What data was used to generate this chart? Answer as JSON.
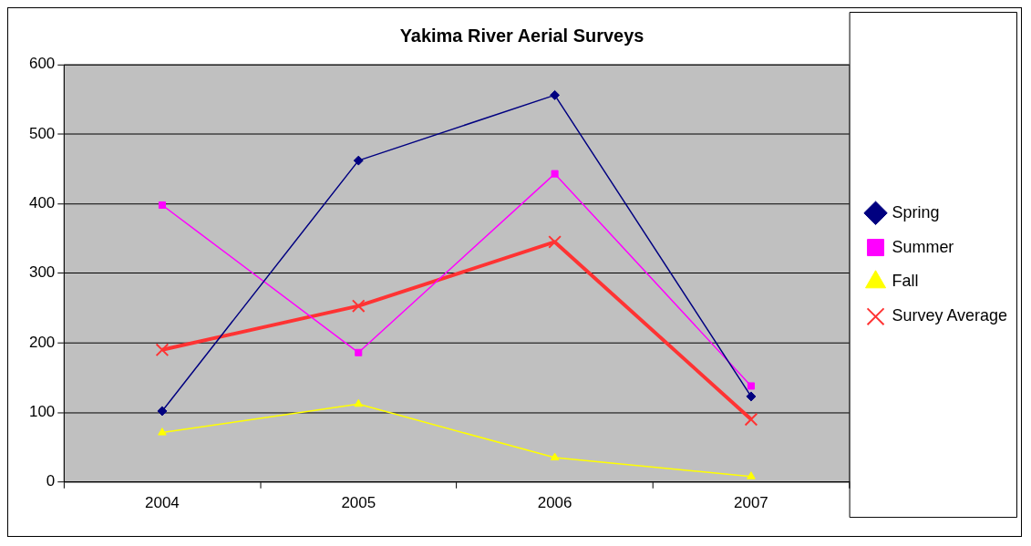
{
  "chart_data": {
    "type": "line",
    "title": "Yakima River Aerial Surveys",
    "categories": [
      "2004",
      "2005",
      "2006",
      "2007"
    ],
    "series": [
      {
        "name": "Spring",
        "color": "#000080",
        "values": [
          102,
          462,
          556,
          123
        ],
        "marker": "diamond"
      },
      {
        "name": "Summer",
        "color": "#ff00ff",
        "values": [
          398,
          186,
          443,
          138
        ],
        "marker": "square"
      },
      {
        "name": "Fall",
        "color": "#ffff00",
        "values": [
          71,
          112,
          35,
          8
        ],
        "marker": "triangle"
      },
      {
        "name": "Survey Average",
        "color": "#ff3333",
        "values": [
          190,
          253,
          345,
          90
        ],
        "marker": "cross"
      }
    ],
    "ylim": [
      0,
      600
    ],
    "yticks": [
      0,
      100,
      200,
      300,
      400,
      500,
      600
    ],
    "grid": "y",
    "legend": "right"
  }
}
